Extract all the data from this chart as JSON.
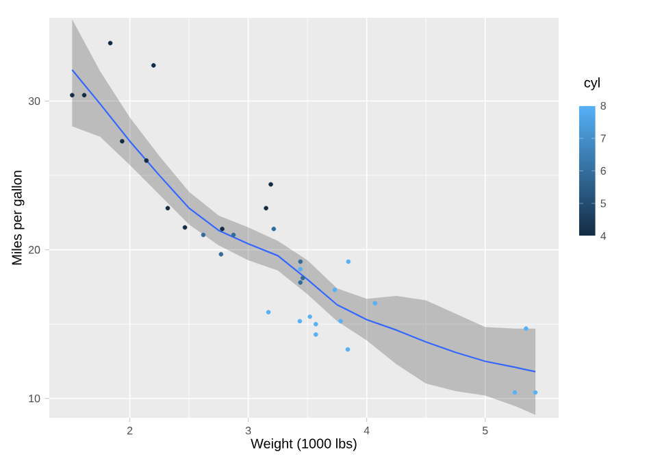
{
  "chart_data": {
    "type": "scatter",
    "xlabel": "Weight (1000 lbs)",
    "ylabel": "Miles per gallon",
    "clabel": "cyl",
    "xlim": [
      1.32,
      5.62
    ],
    "ylim": [
      8.7,
      35.6
    ],
    "xticks": [
      2,
      3,
      4,
      5
    ],
    "yticks": [
      10,
      20,
      30
    ],
    "clim": [
      4,
      8
    ],
    "cticks": [
      4,
      5,
      6,
      7,
      8
    ],
    "grid": true,
    "marker": "circle",
    "series": [
      {
        "colors": [
          "#336a98",
          "#336a98",
          "#132b43",
          "#336a98",
          "#56b1f7",
          "#336a98",
          "#56b1f7",
          "#132b43",
          "#132b43",
          "#336a98",
          "#336a98",
          "#56b1f7",
          "#56b1f7",
          "#56b1f7",
          "#56b1f7",
          "#56b1f7",
          "#56b1f7",
          "#132b43",
          "#132b43",
          "#132b43",
          "#132b43",
          "#56b1f7",
          "#56b1f7",
          "#56b1f7",
          "#56b1f7",
          "#132b43",
          "#132b43",
          "#132b43",
          "#56b1f7",
          "#336a98",
          "#56b1f7",
          "#132b43"
        ],
        "x": [
          2.62,
          2.875,
          2.32,
          3.215,
          3.44,
          3.46,
          3.57,
          3.19,
          3.15,
          3.44,
          3.44,
          4.07,
          3.73,
          3.78,
          5.25,
          5.424,
          5.345,
          2.2,
          1.615,
          1.835,
          2.465,
          3.52,
          3.435,
          3.84,
          3.845,
          1.935,
          2.14,
          1.513,
          3.17,
          2.77,
          3.57,
          2.78
        ],
        "values": [
          21.0,
          21.0,
          22.8,
          21.4,
          18.7,
          18.1,
          14.3,
          24.4,
          22.8,
          19.2,
          17.8,
          16.4,
          17.3,
          15.2,
          10.4,
          10.4,
          14.7,
          32.4,
          30.4,
          33.9,
          21.5,
          15.5,
          15.2,
          13.3,
          19.2,
          27.3,
          26.0,
          30.4,
          15.8,
          19.7,
          15.0,
          21.4
        ],
        "cvalues": [
          6,
          6,
          4,
          6,
          8,
          6,
          8,
          4,
          4,
          6,
          6,
          8,
          8,
          8,
          8,
          8,
          8,
          4,
          4,
          4,
          4,
          8,
          8,
          8,
          8,
          4,
          4,
          4,
          8,
          6,
          8,
          4
        ]
      },
      {
        "type": "line",
        "marker": "none",
        "color": "#3366ff",
        "x": [
          1.513,
          1.75,
          2.0,
          2.25,
          2.5,
          2.75,
          3.0,
          3.25,
          3.5,
          3.75,
          4.0,
          4.25,
          4.5,
          4.75,
          5.0,
          5.25,
          5.424
        ],
        "values": [
          32.1,
          29.8,
          27.3,
          25.0,
          22.8,
          21.3,
          20.4,
          19.6,
          18.0,
          16.3,
          15.3,
          14.6,
          13.8,
          13.1,
          12.5,
          12.1,
          11.8
        ],
        "lower": [
          28.3,
          27.6,
          25.7,
          23.7,
          21.7,
          20.3,
          19.3,
          18.6,
          17.0,
          15.2,
          13.9,
          12.3,
          11.0,
          10.5,
          10.2,
          9.5,
          8.9
        ],
        "upper": [
          35.5,
          32.0,
          28.9,
          26.3,
          23.9,
          22.3,
          21.5,
          20.6,
          19.3,
          17.4,
          16.7,
          16.9,
          16.6,
          15.7,
          14.8,
          14.7,
          14.7
        ]
      }
    ]
  }
}
